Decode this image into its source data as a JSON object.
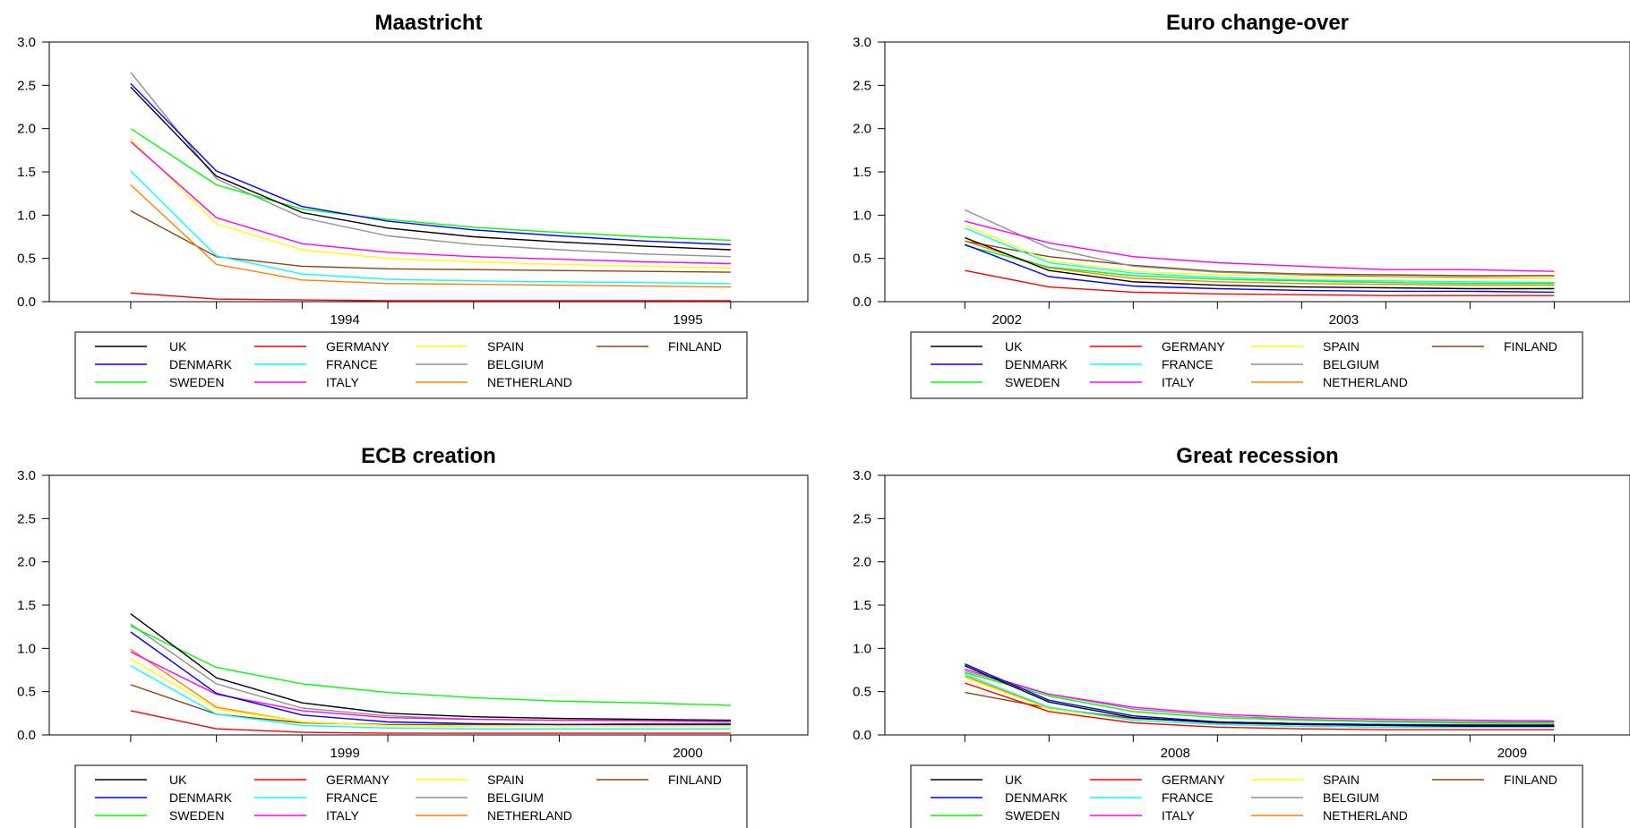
{
  "legend_order": [
    "UK",
    "DENMARK",
    "SWEDEN",
    "GERMANY",
    "FRANCE",
    "ITALY",
    "SPAIN",
    "BELGIUM",
    "NETHERLAND",
    "FINLAND"
  ],
  "series_colors": {
    "UK": "#000000",
    "DENMARK": "#0000ff",
    "SWEDEN": "#00ff00",
    "GERMANY": "#ff0000",
    "FRANCE": "#00ffff",
    "ITALY": "#ff00ff",
    "SPAIN": "#ffff00",
    "BELGIUM": "#909090",
    "NETHERLAND": "#ff8000",
    "FINLAND": "#8b4513"
  },
  "chart_data": [
    {
      "type": "line",
      "title": "Maastricht",
      "ylim": [
        0,
        3.0
      ],
      "yticks": [
        "0.0",
        "0.5",
        "1.0",
        "1.5",
        "2.0",
        "2.5",
        "3.0"
      ],
      "x": [
        1,
        2,
        3,
        4,
        5,
        6,
        7,
        8
      ],
      "xlim": [
        0.05,
        8.9
      ],
      "xticklabels": [
        {
          "x": 3.5,
          "label": "1994"
        },
        {
          "x": 7.5,
          "label": "1995"
        }
      ],
      "grid": false,
      "legend_position": "bottom",
      "series": [
        {
          "name": "UK",
          "values": [
            2.48,
            1.45,
            1.03,
            0.85,
            0.75,
            0.69,
            0.64,
            0.6
          ]
        },
        {
          "name": "DENMARK",
          "values": [
            2.52,
            1.51,
            1.1,
            0.93,
            0.83,
            0.76,
            0.7,
            0.66
          ]
        },
        {
          "name": "SWEDEN",
          "values": [
            2.0,
            1.35,
            1.07,
            0.95,
            0.86,
            0.8,
            0.75,
            0.71
          ]
        },
        {
          "name": "GERMANY",
          "values": [
            0.1,
            0.03,
            0.02,
            0.01,
            0.01,
            0.01,
            0.01,
            0.01
          ]
        },
        {
          "name": "FRANCE",
          "values": [
            1.51,
            0.53,
            0.32,
            0.26,
            0.24,
            0.23,
            0.22,
            0.21
          ]
        },
        {
          "name": "ITALY",
          "values": [
            1.85,
            0.97,
            0.67,
            0.57,
            0.52,
            0.49,
            0.46,
            0.44
          ]
        },
        {
          "name": "SPAIN",
          "values": [
            1.88,
            0.9,
            0.6,
            0.5,
            0.46,
            0.43,
            0.41,
            0.39
          ]
        },
        {
          "name": "BELGIUM",
          "values": [
            2.65,
            1.42,
            0.97,
            0.76,
            0.66,
            0.6,
            0.55,
            0.52
          ]
        },
        {
          "name": "NETHERLAND",
          "values": [
            1.35,
            0.43,
            0.25,
            0.21,
            0.2,
            0.19,
            0.18,
            0.17
          ]
        },
        {
          "name": "FINLAND",
          "values": [
            1.05,
            0.52,
            0.41,
            0.38,
            0.37,
            0.36,
            0.35,
            0.34
          ]
        }
      ]
    },
    {
      "type": "line",
      "title": "Euro change-over",
      "ylim": [
        0,
        3.0
      ],
      "yticks": [
        "0.0",
        "0.5",
        "1.0",
        "1.5",
        "2.0",
        "2.5",
        "3.0"
      ],
      "x": [
        1,
        2,
        3,
        4,
        5,
        6,
        7,
        8
      ],
      "xlim": [
        0.05,
        8.9
      ],
      "xticklabels": [
        {
          "x": 1.5,
          "label": "2002"
        },
        {
          "x": 5.5,
          "label": "2003"
        }
      ],
      "grid": false,
      "legend_position": "bottom",
      "series": [
        {
          "name": "UK",
          "values": [
            0.74,
            0.36,
            0.23,
            0.19,
            0.17,
            0.16,
            0.15,
            0.15
          ]
        },
        {
          "name": "DENMARK",
          "values": [
            0.66,
            0.29,
            0.18,
            0.15,
            0.13,
            0.12,
            0.12,
            0.11
          ]
        },
        {
          "name": "SWEDEN",
          "values": [
            0.65,
            0.4,
            0.3,
            0.26,
            0.24,
            0.22,
            0.21,
            0.21
          ]
        },
        {
          "name": "GERMANY",
          "values": [
            0.36,
            0.17,
            0.11,
            0.09,
            0.08,
            0.07,
            0.07,
            0.07
          ]
        },
        {
          "name": "FRANCE",
          "values": [
            0.85,
            0.45,
            0.33,
            0.28,
            0.25,
            0.24,
            0.23,
            0.22
          ]
        },
        {
          "name": "ITALY",
          "values": [
            0.93,
            0.68,
            0.52,
            0.45,
            0.41,
            0.37,
            0.37,
            0.35
          ]
        },
        {
          "name": "SPAIN",
          "values": [
            0.89,
            0.47,
            0.35,
            0.31,
            0.29,
            0.28,
            0.27,
            0.27
          ]
        },
        {
          "name": "BELGIUM",
          "values": [
            1.06,
            0.62,
            0.41,
            0.34,
            0.31,
            0.29,
            0.28,
            0.27
          ]
        },
        {
          "name": "NETHERLAND",
          "values": [
            0.7,
            0.39,
            0.27,
            0.23,
            0.21,
            0.2,
            0.19,
            0.19
          ]
        },
        {
          "name": "FINLAND",
          "values": [
            0.7,
            0.52,
            0.42,
            0.35,
            0.32,
            0.31,
            0.3,
            0.3
          ]
        }
      ]
    },
    {
      "type": "line",
      "title": "ECB creation",
      "ylim": [
        0,
        3.0
      ],
      "yticks": [
        "0.0",
        "0.5",
        "1.0",
        "1.5",
        "2.0",
        "2.5",
        "3.0"
      ],
      "x": [
        1,
        2,
        3,
        4,
        5,
        6,
        7,
        8
      ],
      "xlim": [
        0.05,
        8.9
      ],
      "xticklabels": [
        {
          "x": 3.5,
          "label": "1999"
        },
        {
          "x": 7.5,
          "label": "2000"
        }
      ],
      "grid": false,
      "legend_position": "bottom",
      "series": [
        {
          "name": "UK",
          "values": [
            1.4,
            0.66,
            0.37,
            0.25,
            0.21,
            0.19,
            0.18,
            0.17
          ]
        },
        {
          "name": "DENMARK",
          "values": [
            1.19,
            0.48,
            0.23,
            0.15,
            0.13,
            0.12,
            0.12,
            0.12
          ]
        },
        {
          "name": "SWEDEN",
          "values": [
            1.26,
            0.78,
            0.59,
            0.49,
            0.43,
            0.39,
            0.37,
            0.34
          ]
        },
        {
          "name": "GERMANY",
          "values": [
            0.28,
            0.07,
            0.03,
            0.02,
            0.02,
            0.02,
            0.02,
            0.02
          ]
        },
        {
          "name": "FRANCE",
          "values": [
            0.8,
            0.24,
            0.11,
            0.08,
            0.07,
            0.07,
            0.07,
            0.07
          ]
        },
        {
          "name": "ITALY",
          "values": [
            0.96,
            0.47,
            0.28,
            0.2,
            0.18,
            0.17,
            0.17,
            0.16
          ]
        },
        {
          "name": "SPAIN",
          "values": [
            0.88,
            0.3,
            0.15,
            0.11,
            0.1,
            0.1,
            0.1,
            0.1
          ]
        },
        {
          "name": "BELGIUM",
          "values": [
            1.28,
            0.59,
            0.31,
            0.22,
            0.18,
            0.17,
            0.16,
            0.15
          ]
        },
        {
          "name": "NETHERLAND",
          "values": [
            0.99,
            0.32,
            0.15,
            0.11,
            0.1,
            0.1,
            0.1,
            0.1
          ]
        },
        {
          "name": "FINLAND",
          "values": [
            0.58,
            0.24,
            0.14,
            0.12,
            0.12,
            0.12,
            0.13,
            0.13
          ]
        }
      ]
    },
    {
      "type": "line",
      "title": "Great recession",
      "ylim": [
        0,
        3.0
      ],
      "yticks": [
        "0.0",
        "0.5",
        "1.0",
        "1.5",
        "2.0",
        "2.5",
        "3.0"
      ],
      "x": [
        1,
        2,
        3,
        4,
        5,
        6,
        7,
        8
      ],
      "xlim": [
        0.05,
        8.9
      ],
      "xticklabels": [
        {
          "x": 3.5,
          "label": "2008"
        },
        {
          "x": 7.5,
          "label": "2009"
        }
      ],
      "grid": false,
      "legend_position": "bottom",
      "series": [
        {
          "name": "UK",
          "values": [
            0.8,
            0.38,
            0.2,
            0.14,
            0.12,
            0.11,
            0.1,
            0.1
          ]
        },
        {
          "name": "DENMARK",
          "values": [
            0.82,
            0.4,
            0.22,
            0.15,
            0.13,
            0.12,
            0.11,
            0.11
          ]
        },
        {
          "name": "SWEDEN",
          "values": [
            0.72,
            0.45,
            0.27,
            0.2,
            0.17,
            0.15,
            0.14,
            0.14
          ]
        },
        {
          "name": "GERMANY",
          "values": [
            0.6,
            0.27,
            0.14,
            0.09,
            0.07,
            0.06,
            0.06,
            0.06
          ]
        },
        {
          "name": "FRANCE",
          "values": [
            0.7,
            0.32,
            0.17,
            0.12,
            0.1,
            0.09,
            0.09,
            0.09
          ]
        },
        {
          "name": "ITALY",
          "values": [
            0.76,
            0.47,
            0.32,
            0.24,
            0.2,
            0.18,
            0.17,
            0.16
          ]
        },
        {
          "name": "SPAIN",
          "values": [
            0.66,
            0.3,
            0.17,
            0.12,
            0.1,
            0.09,
            0.09,
            0.09
          ]
        },
        {
          "name": "BELGIUM",
          "values": [
            0.74,
            0.47,
            0.3,
            0.22,
            0.18,
            0.16,
            0.15,
            0.15
          ]
        },
        {
          "name": "NETHERLAND",
          "values": [
            0.68,
            0.31,
            0.17,
            0.12,
            0.1,
            0.09,
            0.09,
            0.09
          ]
        },
        {
          "name": "FINLAND",
          "values": [
            0.49,
            0.31,
            0.19,
            0.15,
            0.13,
            0.12,
            0.12,
            0.12
          ]
        }
      ]
    }
  ]
}
